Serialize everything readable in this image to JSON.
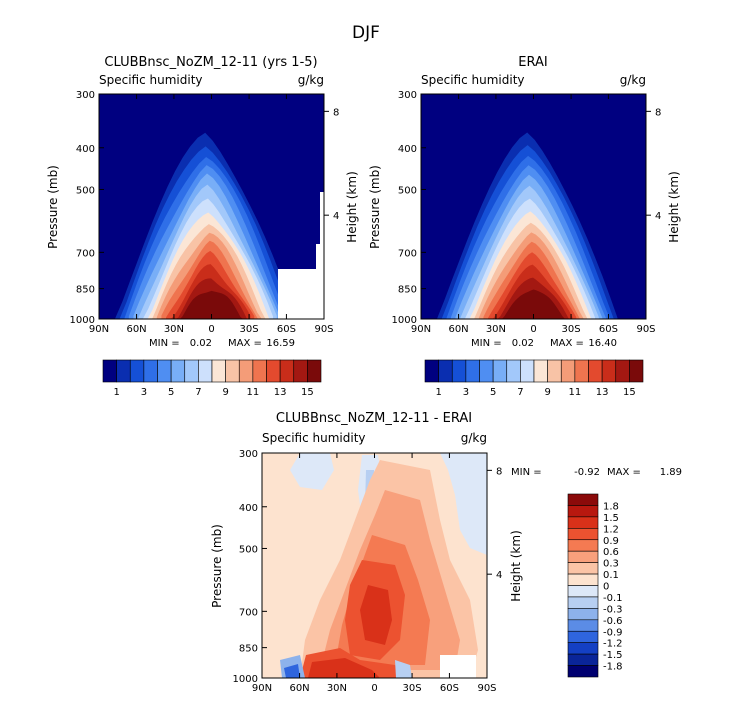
{
  "page_title": "DJF",
  "chart_data": [
    {
      "type": "contour",
      "title": "CLUBBnsc_NoZM_12-11 (yrs 1-5)",
      "subtitle_left": "Specific humidity",
      "subtitle_right": "g/kg",
      "ylabel": "Pressure (mb)",
      "ylabel_right": "Height (km)",
      "x_ticks": [
        "90N",
        "60N",
        "30N",
        "0",
        "30S",
        "60S",
        "90S"
      ],
      "y_ticks": [
        300,
        400,
        500,
        700,
        850,
        1000
      ],
      "y_ticks_right": [
        8,
        4
      ],
      "ylim": [
        1000,
        300
      ],
      "stats": {
        "min_label": "MIN =",
        "min": "0.02",
        "max_label": "MAX =",
        "max": "16.59"
      },
      "colorbar_ticks": [
        "1",
        "3",
        "5",
        "7",
        "9",
        "11",
        "13",
        "15"
      ],
      "colorbar_colors": [
        "#000080",
        "#0a2eb0",
        "#1550d6",
        "#2f6fe8",
        "#4f8ef2",
        "#78aef7",
        "#a2c8fa",
        "#cde0fc",
        "#fbe6d6",
        "#f8c3a6",
        "#f49c78",
        "#ef744f",
        "#e34a2e",
        "#c92d1a",
        "#a31812",
        "#7a0a0a"
      ]
    },
    {
      "type": "contour",
      "title": "ERAI",
      "subtitle_left": "Specific humidity",
      "subtitle_right": "g/kg",
      "ylabel": "Pressure (mb)",
      "ylabel_right": "Height (km)",
      "x_ticks": [
        "90N",
        "60N",
        "30N",
        "0",
        "30S",
        "60S",
        "90S"
      ],
      "y_ticks": [
        300,
        400,
        500,
        700,
        850,
        1000
      ],
      "y_ticks_right": [
        8,
        4
      ],
      "ylim": [
        1000,
        300
      ],
      "stats": {
        "min_label": "MIN =",
        "min": "0.02",
        "max_label": "MAX =",
        "max": "16.40"
      },
      "colorbar_ticks": [
        "1",
        "3",
        "5",
        "7",
        "9",
        "11",
        "13",
        "15"
      ],
      "colorbar_colors": [
        "#000080",
        "#0a2eb0",
        "#1550d6",
        "#2f6fe8",
        "#4f8ef2",
        "#78aef7",
        "#a2c8fa",
        "#cde0fc",
        "#fbe6d6",
        "#f8c3a6",
        "#f49c78",
        "#ef744f",
        "#e34a2e",
        "#c92d1a",
        "#a31812",
        "#7a0a0a"
      ]
    },
    {
      "type": "contour",
      "title": "CLUBBnsc_NoZM_12-11 - ERAI",
      "subtitle_left": "Specific humidity",
      "subtitle_right": "g/kg",
      "ylabel": "Pressure (mb)",
      "ylabel_right": "Height (km)",
      "x_ticks": [
        "90N",
        "60N",
        "30N",
        "0",
        "30S",
        "60S",
        "90S"
      ],
      "y_ticks": [
        300,
        400,
        500,
        700,
        850,
        1000
      ],
      "y_ticks_right": [
        8,
        4
      ],
      "ylim": [
        1000,
        300
      ],
      "stats": {
        "min_label": "MIN =",
        "min": "-0.92",
        "max_label": "MAX =",
        "max": "1.89"
      },
      "colorbar_labels": [
        "1.8",
        "1.5",
        "1.2",
        "0.9",
        "0.6",
        "0.3",
        "0.1",
        "0",
        "-0.1",
        "-0.3",
        "-0.6",
        "-0.9",
        "-1.2",
        "-1.5",
        "-1.8"
      ],
      "colorbar_colors": [
        "#8b0a0a",
        "#b8180f",
        "#d93119",
        "#ec5230",
        "#f47a52",
        "#f8a07c",
        "#fbc4a6",
        "#fde3cf",
        "#dde8f8",
        "#b7cff2",
        "#8db2ec",
        "#5b8ce6",
        "#2f65de",
        "#1440c4",
        "#0a2599",
        "#000070"
      ]
    }
  ]
}
